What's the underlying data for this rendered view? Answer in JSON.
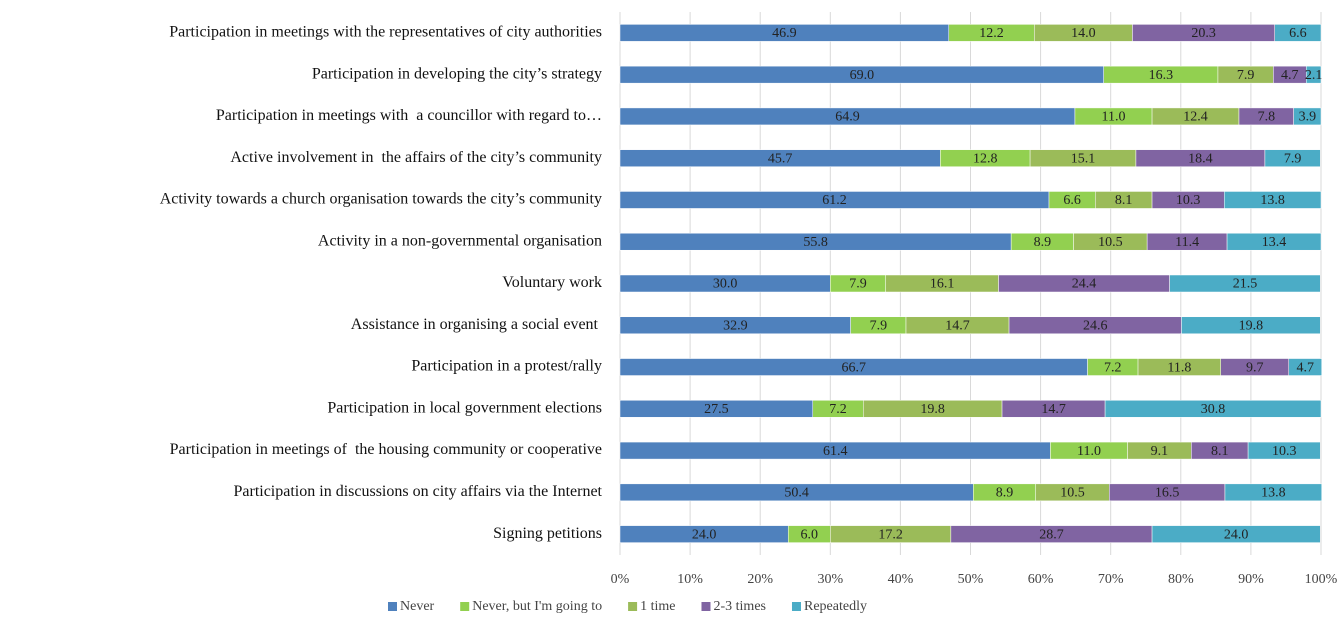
{
  "chart_data": {
    "type": "stacked-bar-horizontal",
    "categories": [
      "Participation in meetings with the representatives of city authorities",
      "Participation in developing the city’s strategy",
      "Participation in meetings with  a councillor with regard to…",
      "Active involvement in  the affairs of the city’s community",
      "Activity towards a church organisation towards the city’s community",
      "Activity in a non-governmental organisation",
      "Voluntary work",
      "Assistance in organising a social event ",
      "Participation in a protest/rally",
      "Participation in local government elections",
      "Participation in meetings of  the housing community or cooperative",
      "Participation in discussions on city affairs via the Internet",
      "Signing petitions"
    ],
    "series": [
      {
        "name": "Never",
        "color": "#4f81bd",
        "values": [
          46.9,
          69.0,
          64.9,
          45.7,
          61.2,
          55.8,
          30.0,
          32.9,
          66.7,
          27.5,
          61.4,
          50.4,
          24.0
        ],
        "value_labels": [
          "46.9",
          "69.0",
          "64.9",
          "45.7",
          "61.2",
          "55.8",
          "30.0",
          "32.9",
          "66.7",
          "27.5",
          "61.4",
          "50.4",
          "24.0"
        ]
      },
      {
        "name": "Never, but I'm going to",
        "color": "#92d050",
        "values": [
          12.2,
          16.3,
          11.0,
          12.8,
          6.6,
          8.9,
          7.9,
          7.9,
          7.2,
          7.2,
          11.0,
          8.9,
          6.0
        ],
        "value_labels": [
          "12.2",
          "16.3",
          "11.0",
          "12.8",
          "6.6",
          "8.9",
          "7.9",
          "7.9",
          "7.2",
          "7.2",
          "11.0",
          "8.9",
          "6.0"
        ]
      },
      {
        "name": "1 time",
        "color": "#9bbb59",
        "values": [
          14.0,
          7.9,
          12.4,
          15.1,
          8.1,
          10.5,
          16.1,
          14.7,
          11.8,
          19.8,
          9.1,
          10.5,
          17.2
        ],
        "value_labels": [
          "14.0",
          "7.9",
          "12.4",
          "15.1",
          "8.1",
          "10.5",
          "16.1",
          "14.7",
          "11.8",
          "19.8",
          "9.1",
          "10.5",
          "17.2"
        ]
      },
      {
        "name": "2-3 times",
        "color": "#8064a2",
        "values": [
          20.3,
          4.7,
          7.8,
          18.4,
          10.3,
          11.4,
          24.4,
          24.6,
          9.7,
          14.7,
          8.1,
          16.5,
          28.7
        ],
        "value_labels": [
          "20.3",
          "4.7",
          "7.8",
          "18.4",
          "10.3",
          "11.4",
          "24.4",
          "24.6",
          "9.7",
          "14.7",
          "8.1",
          "16.5",
          "28.7"
        ]
      },
      {
        "name": "Repeatedly",
        "color": "#4bacc6",
        "values": [
          6.6,
          2.1,
          3.9,
          7.9,
          13.8,
          13.4,
          21.5,
          19.8,
          4.7,
          30.8,
          10.3,
          13.8,
          24.0
        ],
        "value_labels": [
          "6.6",
          "2.1",
          "3.9",
          "7.9",
          "13.8",
          "13.4",
          "21.5",
          "19.8",
          "4.7",
          "30.8",
          "10.3",
          "13.8",
          "24.0"
        ]
      }
    ],
    "xlim": [
      0,
      100
    ],
    "xticks": [
      {
        "value": 0,
        "label": "0%"
      },
      {
        "value": 10,
        "label": "10%"
      },
      {
        "value": 20,
        "label": "20%"
      },
      {
        "value": 30,
        "label": "30%"
      },
      {
        "value": 40,
        "label": "40%"
      },
      {
        "value": 50,
        "label": "50%"
      },
      {
        "value": 60,
        "label": "60%"
      },
      {
        "value": 70,
        "label": "70%"
      },
      {
        "value": 80,
        "label": "80%"
      },
      {
        "value": 90,
        "label": "90%"
      },
      {
        "value": 100,
        "label": "100%"
      }
    ],
    "grid": true,
    "legend": "bottom"
  }
}
